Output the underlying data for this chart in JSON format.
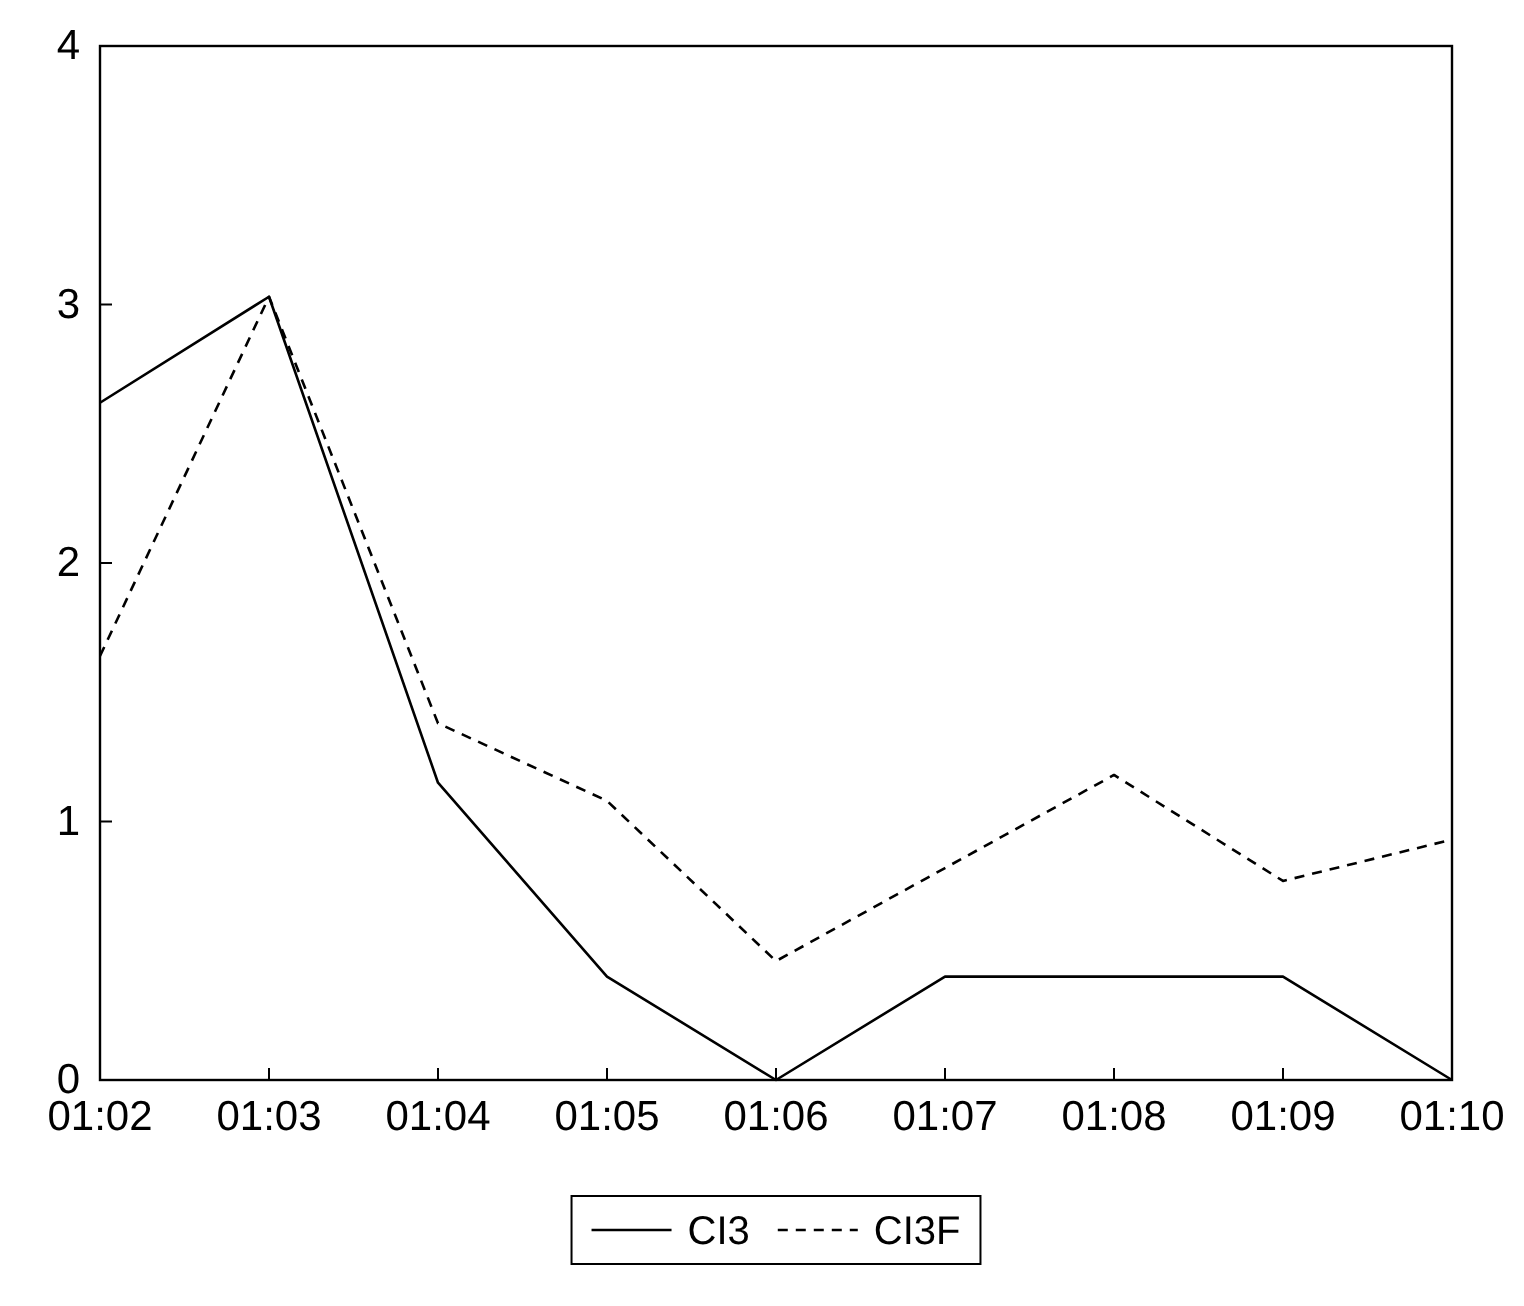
{
  "chart_data": {
    "type": "line",
    "categories": [
      "01:02",
      "01:03",
      "01:04",
      "01:05",
      "01:06",
      "01:07",
      "01:08",
      "01:09",
      "01:10"
    ],
    "series": [
      {
        "name": "CI3",
        "color": "#000000",
        "line_style": "solid",
        "values": [
          2.62,
          3.03,
          1.15,
          0.4,
          0,
          0.4,
          0.4,
          0.4,
          0
        ]
      },
      {
        "name": "CI3F",
        "color": "#000000",
        "line_style": "dashed",
        "values": [
          1.64,
          3.03,
          1.38,
          1.08,
          0.46,
          0.82,
          1.18,
          0.77,
          0.93
        ]
      }
    ],
    "ylim": [
      0,
      4
    ],
    "yticks": [
      0,
      1,
      2,
      3,
      4
    ],
    "grid": false,
    "legend": "bottom",
    "marker": "none"
  }
}
